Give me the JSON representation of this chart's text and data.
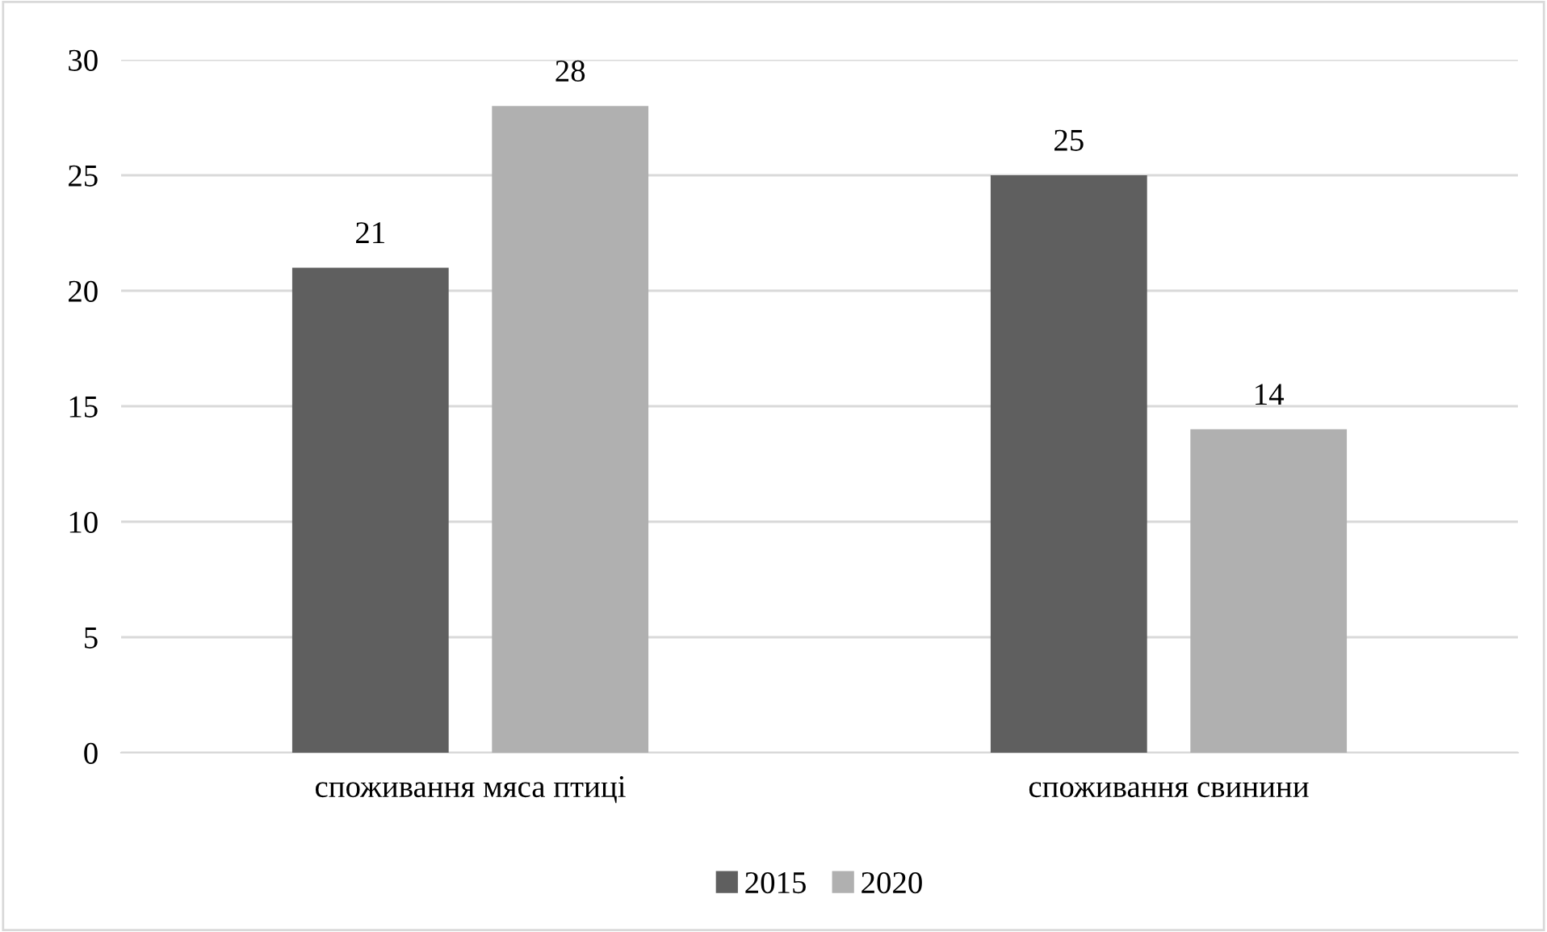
{
  "chart_data": {
    "type": "bar",
    "categories": [
      "споживання мяса птиці",
      "споживання свинини"
    ],
    "series": [
      {
        "name": "2015",
        "color": "#5f5f5f",
        "values": [
          21,
          25
        ]
      },
      {
        "name": "2020",
        "color": "#b0b0b0",
        "values": [
          28,
          14
        ]
      }
    ],
    "ylim": [
      0,
      30
    ],
    "yticks": [
      0,
      5,
      10,
      15,
      20,
      25,
      30
    ],
    "grid": "y",
    "legend": "bottom",
    "data_labels": true
  }
}
